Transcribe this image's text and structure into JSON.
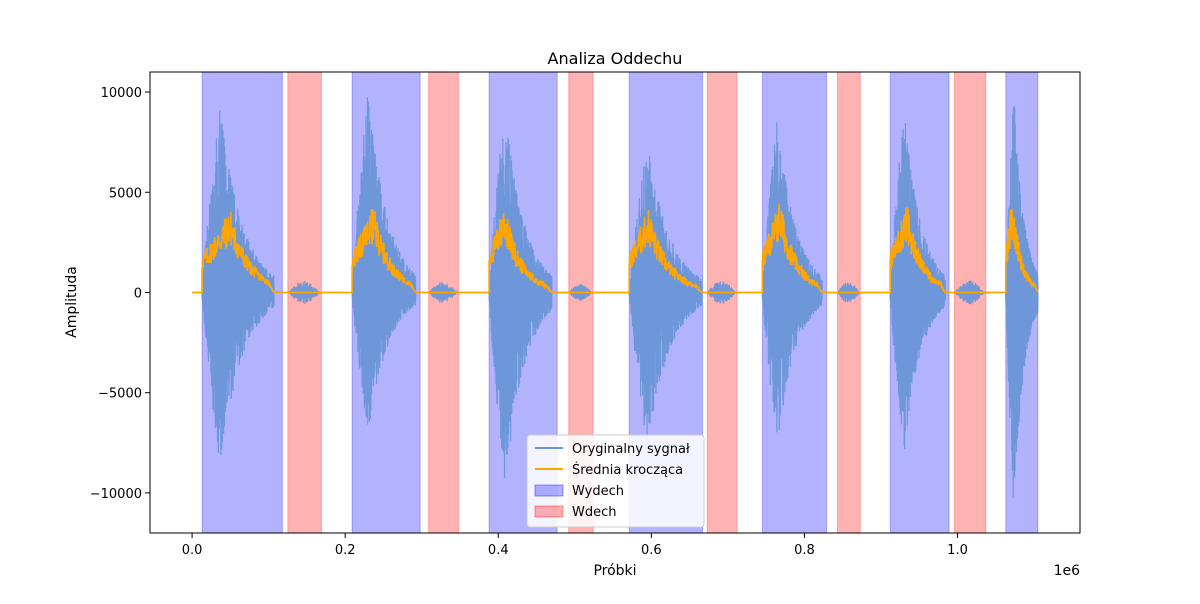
{
  "chart_data": {
    "type": "line",
    "title": "Analiza Oddechu",
    "xlabel": "Próbki",
    "ylabel": "Amplituda",
    "x_offset_text": "1e6",
    "xlim": [
      -55000,
      1160000
    ],
    "ylim": [
      -12000,
      11000
    ],
    "x_ticks": [
      0.0,
      0.2,
      0.4,
      0.6,
      0.8,
      1.0
    ],
    "x_tick_labels": [
      "0.0",
      "0.2",
      "0.4",
      "0.6",
      "0.8",
      "1.0"
    ],
    "y_ticks": [
      -10000,
      -5000,
      0,
      5000,
      10000
    ],
    "y_tick_labels": [
      "−10000",
      "−5000",
      "0",
      "5000",
      "10000"
    ],
    "grid": false,
    "legend_position": "lower-center",
    "series": [
      {
        "name": "Oryginalny sygnał",
        "color": "#6a96d8",
        "style": "line"
      },
      {
        "name": "Średnia krocząca",
        "color": "#ffa500",
        "style": "line"
      },
      {
        "name": "Wydech",
        "color": "#b3b3ff",
        "style": "patch"
      },
      {
        "name": "Wdech",
        "color": "#ffb3b6",
        "style": "patch"
      }
    ],
    "wydech_spans": [
      [
        13000,
        118000
      ],
      [
        209000,
        298000
      ],
      [
        388000,
        477000
      ],
      [
        571000,
        667000
      ],
      [
        745000,
        829000
      ],
      [
        912000,
        989000
      ],
      [
        1063000,
        1105000
      ]
    ],
    "wdech_spans": [
      [
        125000,
        169000
      ],
      [
        309000,
        348000
      ],
      [
        492000,
        524000
      ],
      [
        673000,
        712000
      ],
      [
        843000,
        873000
      ],
      [
        996000,
        1037000
      ]
    ],
    "bursts": [
      {
        "start": 13000,
        "end": 107000,
        "max": 9200,
        "min": -8800,
        "avg_max": 4200,
        "avg_peak_at": 50000
      },
      {
        "start": 209000,
        "end": 292000,
        "max": 10000,
        "min": -7300,
        "avg_max": 4400,
        "avg_peak_at": 237000
      },
      {
        "start": 388000,
        "end": 470000,
        "max": 9300,
        "min": -10000,
        "avg_max": 4500,
        "avg_peak_at": 408000
      },
      {
        "start": 571000,
        "end": 666000,
        "max": 7500,
        "min": -7800,
        "avg_max": 4300,
        "avg_peak_at": 596000
      },
      {
        "start": 745000,
        "end": 823000,
        "max": 8700,
        "min": -7800,
        "avg_max": 4700,
        "avg_peak_at": 768000
      },
      {
        "start": 912000,
        "end": 984000,
        "max": 9200,
        "min": -8100,
        "avg_max": 4500,
        "avg_peak_at": 934000
      },
      {
        "start": 1063000,
        "end": 1105000,
        "max": 10000,
        "min": -11000,
        "avg_max": 4900,
        "avg_peak_at": 1072000
      }
    ],
    "quiet_bursts": [
      {
        "start": 125000,
        "end": 167000,
        "amp": 600
      },
      {
        "start": 309000,
        "end": 346000,
        "amp": 550
      },
      {
        "start": 492000,
        "end": 522000,
        "amp": 450
      },
      {
        "start": 673000,
        "end": 710000,
        "amp": 600
      },
      {
        "start": 843000,
        "end": 872000,
        "amp": 550
      },
      {
        "start": 996000,
        "end": 1035000,
        "amp": 600
      }
    ]
  }
}
